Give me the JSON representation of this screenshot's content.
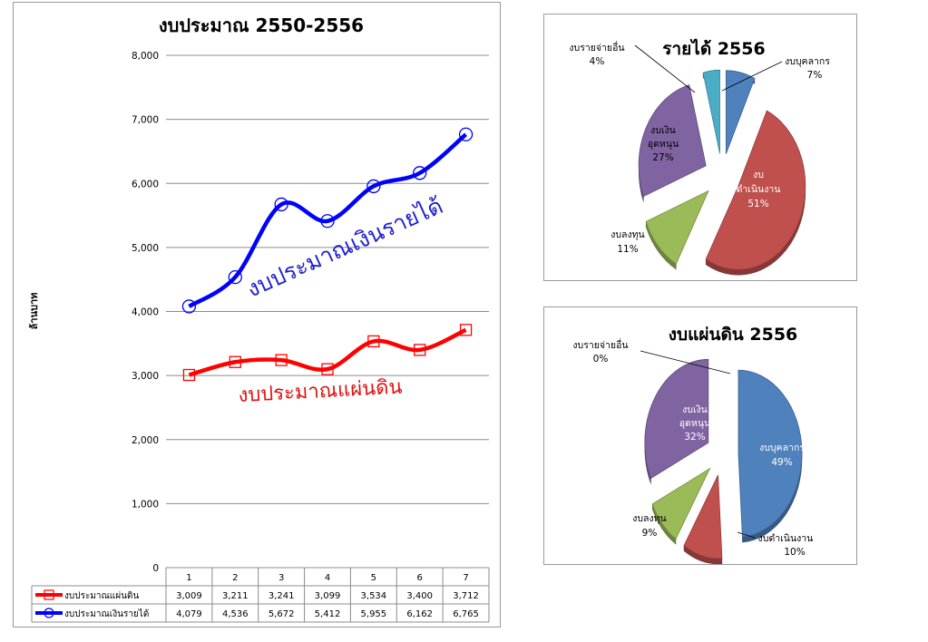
{
  "line_chart": {
    "title": "งบประมาณ 2550-2556",
    "ylabel": "ล้านบาท",
    "y_ticks": [
      "0",
      "1,000",
      "2,000",
      "3,000",
      "4,000",
      "5,000",
      "6,000",
      "7,000",
      "8,000"
    ],
    "annotation_blue": "งบประมาณเงินรายได้",
    "annotation_red": "งบประมาณแผ่นดิน"
  },
  "pie1": {
    "title": "รายได้ 2556",
    "labels": [
      {
        "l1": "งบบุคลากร",
        "l2": "7%"
      },
      {
        "l1": "งบ",
        "l2": "ดำเนินงาน",
        "l3": "51%"
      },
      {
        "l1": "งบลงทุน",
        "l2": "11%"
      },
      {
        "l1": "งบเงิน",
        "l2": "อุดหนุน",
        "l3": "27%"
      },
      {
        "l1": "งบรายจ่ายอื่น",
        "l2": "4%"
      }
    ]
  },
  "pie2": {
    "title": "งบแผ่นดิน 2556",
    "labels": [
      {
        "l1": "งบบุคลากร",
        "l2": "49%"
      },
      {
        "l1": "งบดำเนินงาน",
        "l2": "10%"
      },
      {
        "l1": "งบลงทุน",
        "l2": "9%"
      },
      {
        "l1": "งบเงิน",
        "l2": "อุดหนุน",
        "l3": "32%"
      },
      {
        "l1": "งบรายจ่ายอื่น",
        "l2": "0%"
      }
    ]
  },
  "chart_data": [
    {
      "type": "line",
      "title": "งบประมาณ 2550-2556",
      "xlabel": "",
      "ylabel": "ล้านบาท",
      "ylim": [
        0,
        8000
      ],
      "grid": true,
      "x": [
        "1",
        "2",
        "3",
        "4",
        "5",
        "6",
        "7"
      ],
      "series": [
        {
          "name": "งบประมาณแผ่นดิน",
          "color": "#ff0000",
          "display": [
            "3,009",
            "3,211",
            "3,241",
            "3,099",
            "3,534",
            "3,400",
            "3,712"
          ],
          "values": [
            3009,
            3211,
            3241,
            3099,
            3534,
            3400,
            3712
          ]
        },
        {
          "name": "งบประมาณเงินรายได้",
          "color": "#0000ff",
          "display": [
            "4,079",
            "4,536",
            "5,672",
            "5,412",
            "5,955",
            "6,162",
            "6,765"
          ],
          "values": [
            4079,
            4536,
            5672,
            5412,
            5955,
            6162,
            6765
          ]
        }
      ]
    },
    {
      "type": "pie",
      "title": "รายได้ 2556",
      "categories": [
        "งบบุคลากร",
        "งบดำเนินงาน",
        "งบลงทุน",
        "งบเงินอุดหนุน",
        "งบรายจ่ายอื่น"
      ],
      "values": [
        7,
        51,
        11,
        27,
        4
      ],
      "colors": [
        "#4f81bd",
        "#c0504d",
        "#9bbb59",
        "#8064a2",
        "#4bacc6"
      ]
    },
    {
      "type": "pie",
      "title": "งบแผ่นดิน 2556",
      "categories": [
        "งบบุคลากร",
        "งบดำเนินงาน",
        "งบลงทุน",
        "งบเงินอุดหนุน",
        "งบรายจ่ายอื่น"
      ],
      "values": [
        49,
        10,
        9,
        32,
        0
      ],
      "colors": [
        "#4f81bd",
        "#c0504d",
        "#9bbb59",
        "#8064a2",
        "#4bacc6"
      ]
    }
  ]
}
